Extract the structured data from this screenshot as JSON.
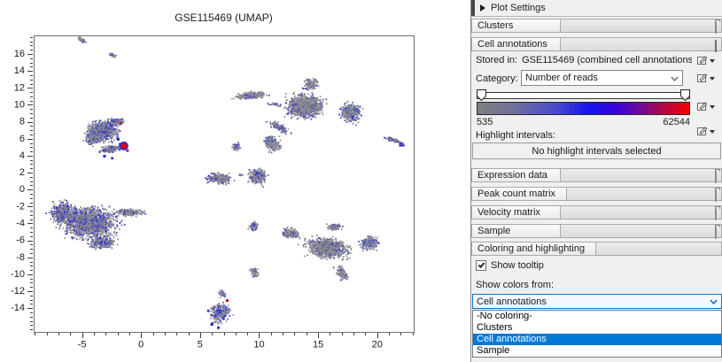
{
  "plot": {
    "title": "GSE115469 (UMAP)"
  },
  "chart_data": {
    "type": "scatter",
    "title": "GSE115469 (UMAP)",
    "xlabel": "",
    "ylabel": "",
    "xlim": [
      -9.1,
      23.1
    ],
    "ylim": [
      -16.8,
      18.2
    ],
    "xticks": [
      -5,
      0,
      5,
      10,
      15,
      20
    ],
    "yticks": [
      16,
      14,
      12,
      10,
      8,
      6,
      4,
      2,
      0,
      -2,
      -4,
      -6,
      -8,
      -10,
      -12,
      -14
    ],
    "x_minor_step": 1,
    "y_minor_step": 0.5,
    "grid": false,
    "legend": "none",
    "point_palette": {
      "grays": [
        "#8e8e93",
        "#87878c",
        "#97979c",
        "#808086",
        "#8b8b95"
      ],
      "blues": [
        "#61619f",
        "#5252a8",
        "#4646bc",
        "#6c6caa",
        "#3333cf",
        "#2a2ad6"
      ]
    },
    "clusters": [
      {
        "name": "top-streak",
        "cx": -5.05,
        "cy": 17.7,
        "rx": 0.55,
        "ry": 0.2,
        "rot": -40,
        "n": 70,
        "blue": 0.3
      },
      {
        "name": "top-small-blob",
        "cx": -2.4,
        "cy": 15.85,
        "rx": 0.4,
        "ry": 0.2,
        "rot": -38,
        "n": 45,
        "blue": 0.3
      },
      {
        "name": "left-cluster-main",
        "cx": -3.3,
        "cy": 6.9,
        "rx": 1.75,
        "ry": 1.55,
        "rot": 0,
        "n": 850,
        "blue": 0.4
      },
      {
        "name": "left-cluster-upper",
        "cx": -2.2,
        "cy": 8.0,
        "rx": 0.8,
        "ry": 0.6,
        "rot": 0,
        "n": 160,
        "blue": 0.35
      },
      {
        "name": "left-cluster-west",
        "cx": -4.2,
        "cy": 6.0,
        "rx": 0.8,
        "ry": 0.9,
        "rot": 0,
        "n": 160,
        "blue": 0.4
      },
      {
        "name": "left-cluster-bottom",
        "cx": -2.6,
        "cy": 4.8,
        "rx": 1.1,
        "ry": 0.6,
        "rot": 12,
        "n": 170,
        "blue": 0.55
      },
      {
        "name": "left-blue-clump",
        "cx": -1.6,
        "cy": 5.15,
        "rx": 0.5,
        "ry": 0.5,
        "rot": 0,
        "n": 110,
        "blue": 0.85
      },
      {
        "name": "butterfly-left-arm",
        "cx": 9.3,
        "cy": 11.1,
        "rx": 1.7,
        "ry": 0.5,
        "rot": 8,
        "n": 360,
        "blue": 0.18
      },
      {
        "name": "butterfly-center",
        "cx": 13.9,
        "cy": 9.8,
        "rx": 2.1,
        "ry": 1.8,
        "rot": 0,
        "n": 1050,
        "blue": 0.22
      },
      {
        "name": "butterfly-top-spike",
        "cx": 14.4,
        "cy": 12.4,
        "rx": 0.75,
        "ry": 0.9,
        "rot": 0,
        "n": 160,
        "blue": 0.25
      },
      {
        "name": "butterfly-right-lobe",
        "cx": 17.8,
        "cy": 9.1,
        "rx": 1.15,
        "ry": 1.5,
        "rot": 0,
        "n": 360,
        "blue": 0.42
      },
      {
        "name": "butterfly-neck",
        "cx": 11.7,
        "cy": 7.4,
        "rx": 1.3,
        "ry": 0.55,
        "rot": -42,
        "n": 150,
        "blue": 0.35
      },
      {
        "name": "butterfly-trail-dots",
        "cx": 11.2,
        "cy": 10.1,
        "rx": 0.85,
        "ry": 0.3,
        "rot": -12,
        "n": 28,
        "blue": 0.3
      },
      {
        "name": "mid-vertical-bean",
        "cx": 11.1,
        "cy": 5.4,
        "rx": 0.85,
        "ry": 1.35,
        "rot": 14,
        "n": 250,
        "blue": 0.32
      },
      {
        "name": "mid-small-blob",
        "cx": 8.05,
        "cy": 5.05,
        "rx": 0.5,
        "ry": 0.6,
        "rot": 0,
        "n": 70,
        "blue": 0.4
      },
      {
        "name": "mid-lower-blob",
        "cx": 9.85,
        "cy": 1.5,
        "rx": 1.0,
        "ry": 1.3,
        "rot": -10,
        "n": 250,
        "blue": 0.32
      },
      {
        "name": "mid-left-bean",
        "cx": 6.6,
        "cy": 1.3,
        "rx": 1.45,
        "ry": 0.8,
        "rot": -8,
        "n": 270,
        "blue": 0.32
      },
      {
        "name": "mid-tiny-dot",
        "cx": 8.4,
        "cy": 1.7,
        "rx": 0.2,
        "ry": 0.2,
        "rot": 0,
        "n": 14,
        "blue": 0.3
      },
      {
        "name": "isolated-blob-upper",
        "cx": 9.55,
        "cy": -4.35,
        "rx": 0.55,
        "ry": 0.75,
        "rot": -20,
        "n": 90,
        "blue": 0.45
      },
      {
        "name": "isolated-blob-lower",
        "cx": 9.6,
        "cy": -9.8,
        "rx": 0.45,
        "ry": 0.8,
        "rot": 10,
        "n": 70,
        "blue": 0.3
      },
      {
        "name": "bottomleft-main",
        "cx": -4.4,
        "cy": -3.9,
        "rx": 3.3,
        "ry": 2.5,
        "rot": -10,
        "n": 1500,
        "blue": 0.4
      },
      {
        "name": "bottomleft-west-lobe",
        "cx": -6.6,
        "cy": -2.7,
        "rx": 1.5,
        "ry": 1.6,
        "rot": 0,
        "n": 420,
        "blue": 0.45
      },
      {
        "name": "bottomleft-nose",
        "cx": -0.9,
        "cy": -2.7,
        "rx": 1.6,
        "ry": 0.55,
        "rot": -4,
        "n": 200,
        "blue": 0.22
      },
      {
        "name": "bottomleft-south",
        "cx": -3.3,
        "cy": -6.3,
        "rx": 1.5,
        "ry": 0.9,
        "rot": 6,
        "n": 280,
        "blue": 0.4
      },
      {
        "name": "bird-main",
        "cx": 15.8,
        "cy": -6.9,
        "rx": 2.5,
        "ry": 1.6,
        "rot": -16,
        "n": 950,
        "blue": 0.22
      },
      {
        "name": "bird-left-wing",
        "cx": 12.7,
        "cy": -5.2,
        "rx": 1.05,
        "ry": 0.75,
        "rot": -28,
        "n": 190,
        "blue": 0.28
      },
      {
        "name": "bird-right-lobe",
        "cx": 19.4,
        "cy": -6.3,
        "rx": 1.05,
        "ry": 1.05,
        "rot": 0,
        "n": 250,
        "blue": 0.45
      },
      {
        "name": "bird-top-bump",
        "cx": 16.3,
        "cy": -4.4,
        "rx": 0.85,
        "ry": 0.5,
        "rot": 0,
        "n": 120,
        "blue": 0.2
      },
      {
        "name": "bird-tail",
        "cx": 17.0,
        "cy": -9.9,
        "rx": 0.55,
        "ry": 1.25,
        "rot": 18,
        "n": 120,
        "blue": 0.3
      },
      {
        "name": "bottom-cluster",
        "cx": 6.7,
        "cy": -14.6,
        "rx": 1.1,
        "ry": 1.5,
        "rot": -6,
        "n": 290,
        "blue": 0.5
      },
      {
        "name": "bottom-cluster-tip",
        "cx": 6.9,
        "cy": -12.3,
        "rx": 0.45,
        "ry": 0.5,
        "rot": 0,
        "n": 40,
        "blue": 0.35
      },
      {
        "name": "right-streak",
        "cx": 21.4,
        "cy": 5.85,
        "rx": 0.9,
        "ry": 0.25,
        "rot": -26,
        "n": 90,
        "blue": 0.35
      },
      {
        "name": "right-streak-blue-end",
        "cx": 22.1,
        "cy": 5.35,
        "rx": 0.3,
        "ry": 0.3,
        "rot": 0,
        "n": 45,
        "blue": 0.9
      }
    ],
    "special_points": [
      {
        "x": -1.45,
        "y": 5.15,
        "r": 5.0,
        "color": "#3030c8"
      },
      {
        "x": -1.45,
        "y": 5.15,
        "r": 3.4,
        "color": "#e0001e"
      },
      {
        "x": -1.15,
        "y": 4.6,
        "r": 1.6,
        "color": "#b00090"
      },
      {
        "x": -1.67,
        "y": 7.85,
        "r": 1.6,
        "color": "#8e1f2e"
      },
      {
        "x": -1.95,
        "y": 5.95,
        "r": 1.8,
        "color": "#2222cc"
      },
      {
        "x": -3.1,
        "y": 3.95,
        "r": 1.7,
        "color": "#2525d4"
      },
      {
        "x": -2.45,
        "y": 3.7,
        "r": 1.5,
        "color": "#2a2ad0"
      },
      {
        "x": 7.3,
        "y": -13.1,
        "r": 1.7,
        "color": "#b51326"
      },
      {
        "x": 6.0,
        "y": -15.9,
        "r": 1.8,
        "color": "#2222cc"
      },
      {
        "x": 6.55,
        "y": -16.3,
        "r": 1.6,
        "color": "#2a2ace"
      },
      {
        "x": 5.7,
        "y": -14.3,
        "r": 1.5,
        "color": "#2a2ace"
      }
    ]
  },
  "panel": {
    "title": "Plot Settings",
    "sections": {
      "clusters": "Clusters",
      "cell_annotations": "Cell annotations",
      "expression_data": "Expression data",
      "peak_count_matrix": "Peak count matrix",
      "velocity_matrix": "Velocity matrix",
      "sample": "Sample",
      "coloring": "Coloring and highlighting"
    },
    "cell_annotations": {
      "stored_in_label": "Stored in:",
      "stored_in_value": "GSE115469 (combined cell annotations)",
      "category_label": "Category:",
      "category_value": "Number of reads",
      "gradient": {
        "min": "535",
        "max": "62544",
        "stops": [
          "#7f7f7f 0%",
          "#6e6e9e 18%",
          "#4848cf 38%",
          "#1414f0 52%",
          "#3a00d8 66%",
          "#6a0a9e 76%",
          "#a8084f 86%",
          "#e60012 97%",
          "#f00000 100%"
        ]
      },
      "highlight_label": "Highlight intervals:",
      "highlight_button": "No highlight intervals selected"
    },
    "coloring": {
      "show_tooltip_label": "Show tooltip",
      "tooltip_checked": true,
      "show_colors_label": "Show colors from:",
      "combo_value": "Cell annotations",
      "options": [
        "-No coloring-",
        "Clusters",
        "Cell annotations",
        "Sample"
      ],
      "selected_option": "Cell annotations"
    },
    "icons": {
      "header_arrow": "right-triangle-icon",
      "collapsed_section": "folder-icon",
      "expanded_section": "minus-icon",
      "edit": "pencil-edit-icon",
      "combo_chevron": "chevron-down-icon"
    },
    "accent_color": "#0078d7"
  }
}
